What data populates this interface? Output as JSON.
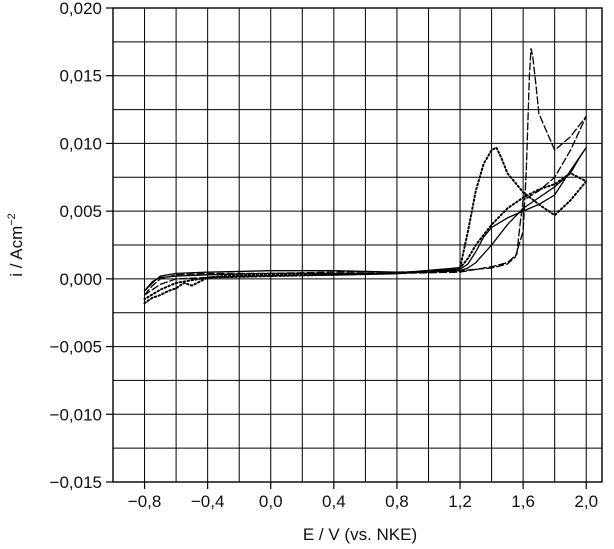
{
  "chart_data": {
    "type": "line",
    "xlabel": "E / V (vs. NKE)",
    "ylabel": "i / Acm",
    "ylabel_superscript": "−2",
    "xlim": [
      -1.0,
      2.1
    ],
    "ylim": [
      -0.015,
      0.02
    ],
    "x_ticks": [
      -0.8,
      -0.4,
      0.0,
      0.4,
      0.8,
      1.2,
      1.6,
      2.0
    ],
    "x_tick_labels": [
      "−0,8",
      "−0,4",
      "0,0",
      "0,4",
      "0,8",
      "1,2",
      "1,6",
      "2,0"
    ],
    "y_ticks": [
      -0.015,
      -0.01,
      -0.005,
      0.0,
      0.005,
      0.01,
      0.015,
      0.02
    ],
    "y_tick_labels": [
      "−0,015",
      "−0,010",
      "−0,005",
      "0,000",
      "0,005",
      "0,010",
      "0,015",
      "0,020"
    ],
    "grid": true,
    "series": [
      {
        "style": "solid",
        "color": "#000000",
        "x": [
          -0.8,
          -0.75,
          -0.7,
          -0.6,
          -0.4,
          0.0,
          0.4,
          0.8,
          1.0,
          1.2,
          1.25,
          1.3,
          1.35,
          1.4,
          1.5,
          1.6,
          1.7,
          1.8,
          1.9,
          2.0,
          1.95,
          1.9,
          1.8,
          1.7,
          1.6,
          1.5,
          1.4,
          1.3,
          1.25,
          1.2,
          1.0,
          0.8,
          0.4,
          0.0,
          -0.4,
          -0.6,
          -0.7,
          -0.75,
          -0.8
        ],
        "y": [
          -0.0009,
          -0.0003,
          0.0002,
          0.0004,
          0.0005,
          0.0006,
          0.0006,
          0.0005,
          0.0005,
          0.0007,
          0.0011,
          0.002,
          0.0031,
          0.0038,
          0.0045,
          0.005,
          0.0055,
          0.0062,
          0.008,
          0.0097,
          0.0088,
          0.0078,
          0.0068,
          0.006,
          0.0052,
          0.004,
          0.0025,
          0.0012,
          0.0008,
          0.0006,
          0.0005,
          0.0004,
          0.0004,
          0.0004,
          0.0003,
          0.0002,
          0.0001,
          -0.0002,
          -0.0009
        ]
      },
      {
        "style": "dashed",
        "color": "#000000",
        "x": [
          -0.8,
          -0.75,
          -0.7,
          -0.6,
          -0.4,
          0.0,
          0.4,
          0.8,
          1.2,
          1.4,
          1.5,
          1.55,
          1.6,
          1.62,
          1.64,
          1.65,
          1.66,
          1.68,
          1.7,
          1.8,
          1.9,
          2.0,
          1.9,
          1.8,
          1.7,
          1.6,
          1.58,
          1.56,
          1.5,
          1.4,
          1.2,
          0.8,
          0.4,
          0.0,
          -0.4,
          -0.6,
          -0.7,
          -0.8
        ],
        "y": [
          -0.0012,
          -0.0005,
          0.0,
          0.0003,
          0.0004,
          0.0004,
          0.0005,
          0.0005,
          0.0006,
          0.0008,
          0.0011,
          0.0016,
          0.0035,
          0.008,
          0.015,
          0.017,
          0.0165,
          0.0145,
          0.0122,
          0.0095,
          0.0105,
          0.012,
          0.0095,
          0.0075,
          0.0065,
          0.0058,
          0.004,
          0.0018,
          0.0012,
          0.0009,
          0.0005,
          0.0004,
          0.0003,
          0.0002,
          0.0001,
          0.0,
          -0.0004,
          -0.0012
        ]
      },
      {
        "style": "dotted",
        "color": "#000000",
        "x": [
          -0.8,
          -0.75,
          -0.7,
          -0.65,
          -0.6,
          -0.55,
          -0.5,
          -0.45,
          -0.4,
          -0.3,
          0.0,
          0.4,
          0.8,
          1.2,
          1.25,
          1.3,
          1.35,
          1.4,
          1.43,
          1.46,
          1.5,
          1.6,
          1.7,
          1.8,
          1.9,
          2.0,
          1.9,
          1.8,
          1.7,
          1.6,
          1.5,
          1.4,
          1.3,
          1.25,
          1.2,
          1.0,
          0.8,
          0.4,
          0.0,
          -0.4,
          -0.6,
          -0.7,
          -0.8
        ],
        "y": [
          -0.0018,
          -0.0014,
          -0.0012,
          -0.0009,
          -0.0007,
          -0.0003,
          -0.0005,
          -0.0002,
          0.0001,
          0.0002,
          0.0003,
          0.0003,
          0.0004,
          0.0008,
          0.0035,
          0.0065,
          0.0085,
          0.0095,
          0.0097,
          0.009,
          0.0078,
          0.0064,
          0.0055,
          0.0047,
          0.0058,
          0.0072,
          0.0078,
          0.007,
          0.0066,
          0.006,
          0.0052,
          0.004,
          0.0025,
          0.0015,
          0.0008,
          0.0006,
          0.0004,
          0.0003,
          0.0002,
          0.0001,
          -0.0003,
          -0.0008,
          -0.0015
        ]
      }
    ]
  }
}
